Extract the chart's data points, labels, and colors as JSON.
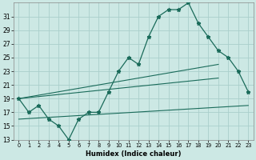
{
  "xlabel": "Humidex (Indice chaleur)",
  "x_ticks": [
    0,
    1,
    2,
    3,
    4,
    5,
    6,
    7,
    8,
    9,
    10,
    11,
    12,
    13,
    14,
    15,
    16,
    17,
    18,
    19,
    20,
    21,
    22,
    23
  ],
  "ylim": [
    13,
    33
  ],
  "y_ticks": [
    13,
    15,
    17,
    19,
    21,
    23,
    25,
    27,
    29,
    31
  ],
  "background_color": "#cce8e4",
  "grid_color": "#aacfcc",
  "line_color": "#1a6b5a",
  "x_data": [
    0,
    1,
    2,
    3,
    4,
    5,
    6,
    7,
    8,
    9,
    10,
    11,
    12,
    13,
    14,
    15,
    16,
    17,
    18,
    19,
    20,
    21,
    22,
    23
  ],
  "y_main": [
    19,
    17,
    18,
    16,
    15,
    13,
    16,
    17,
    17,
    20,
    23,
    25,
    24,
    28,
    31,
    32,
    32,
    33,
    30,
    28,
    26,
    25,
    23,
    20
  ],
  "trend1_x": [
    0,
    20
  ],
  "trend1_y": [
    19,
    24
  ],
  "trend2_x": [
    0,
    20
  ],
  "trend2_y": [
    19,
    22
  ],
  "trend3_x": [
    0,
    23
  ],
  "trend3_y": [
    16,
    18
  ]
}
